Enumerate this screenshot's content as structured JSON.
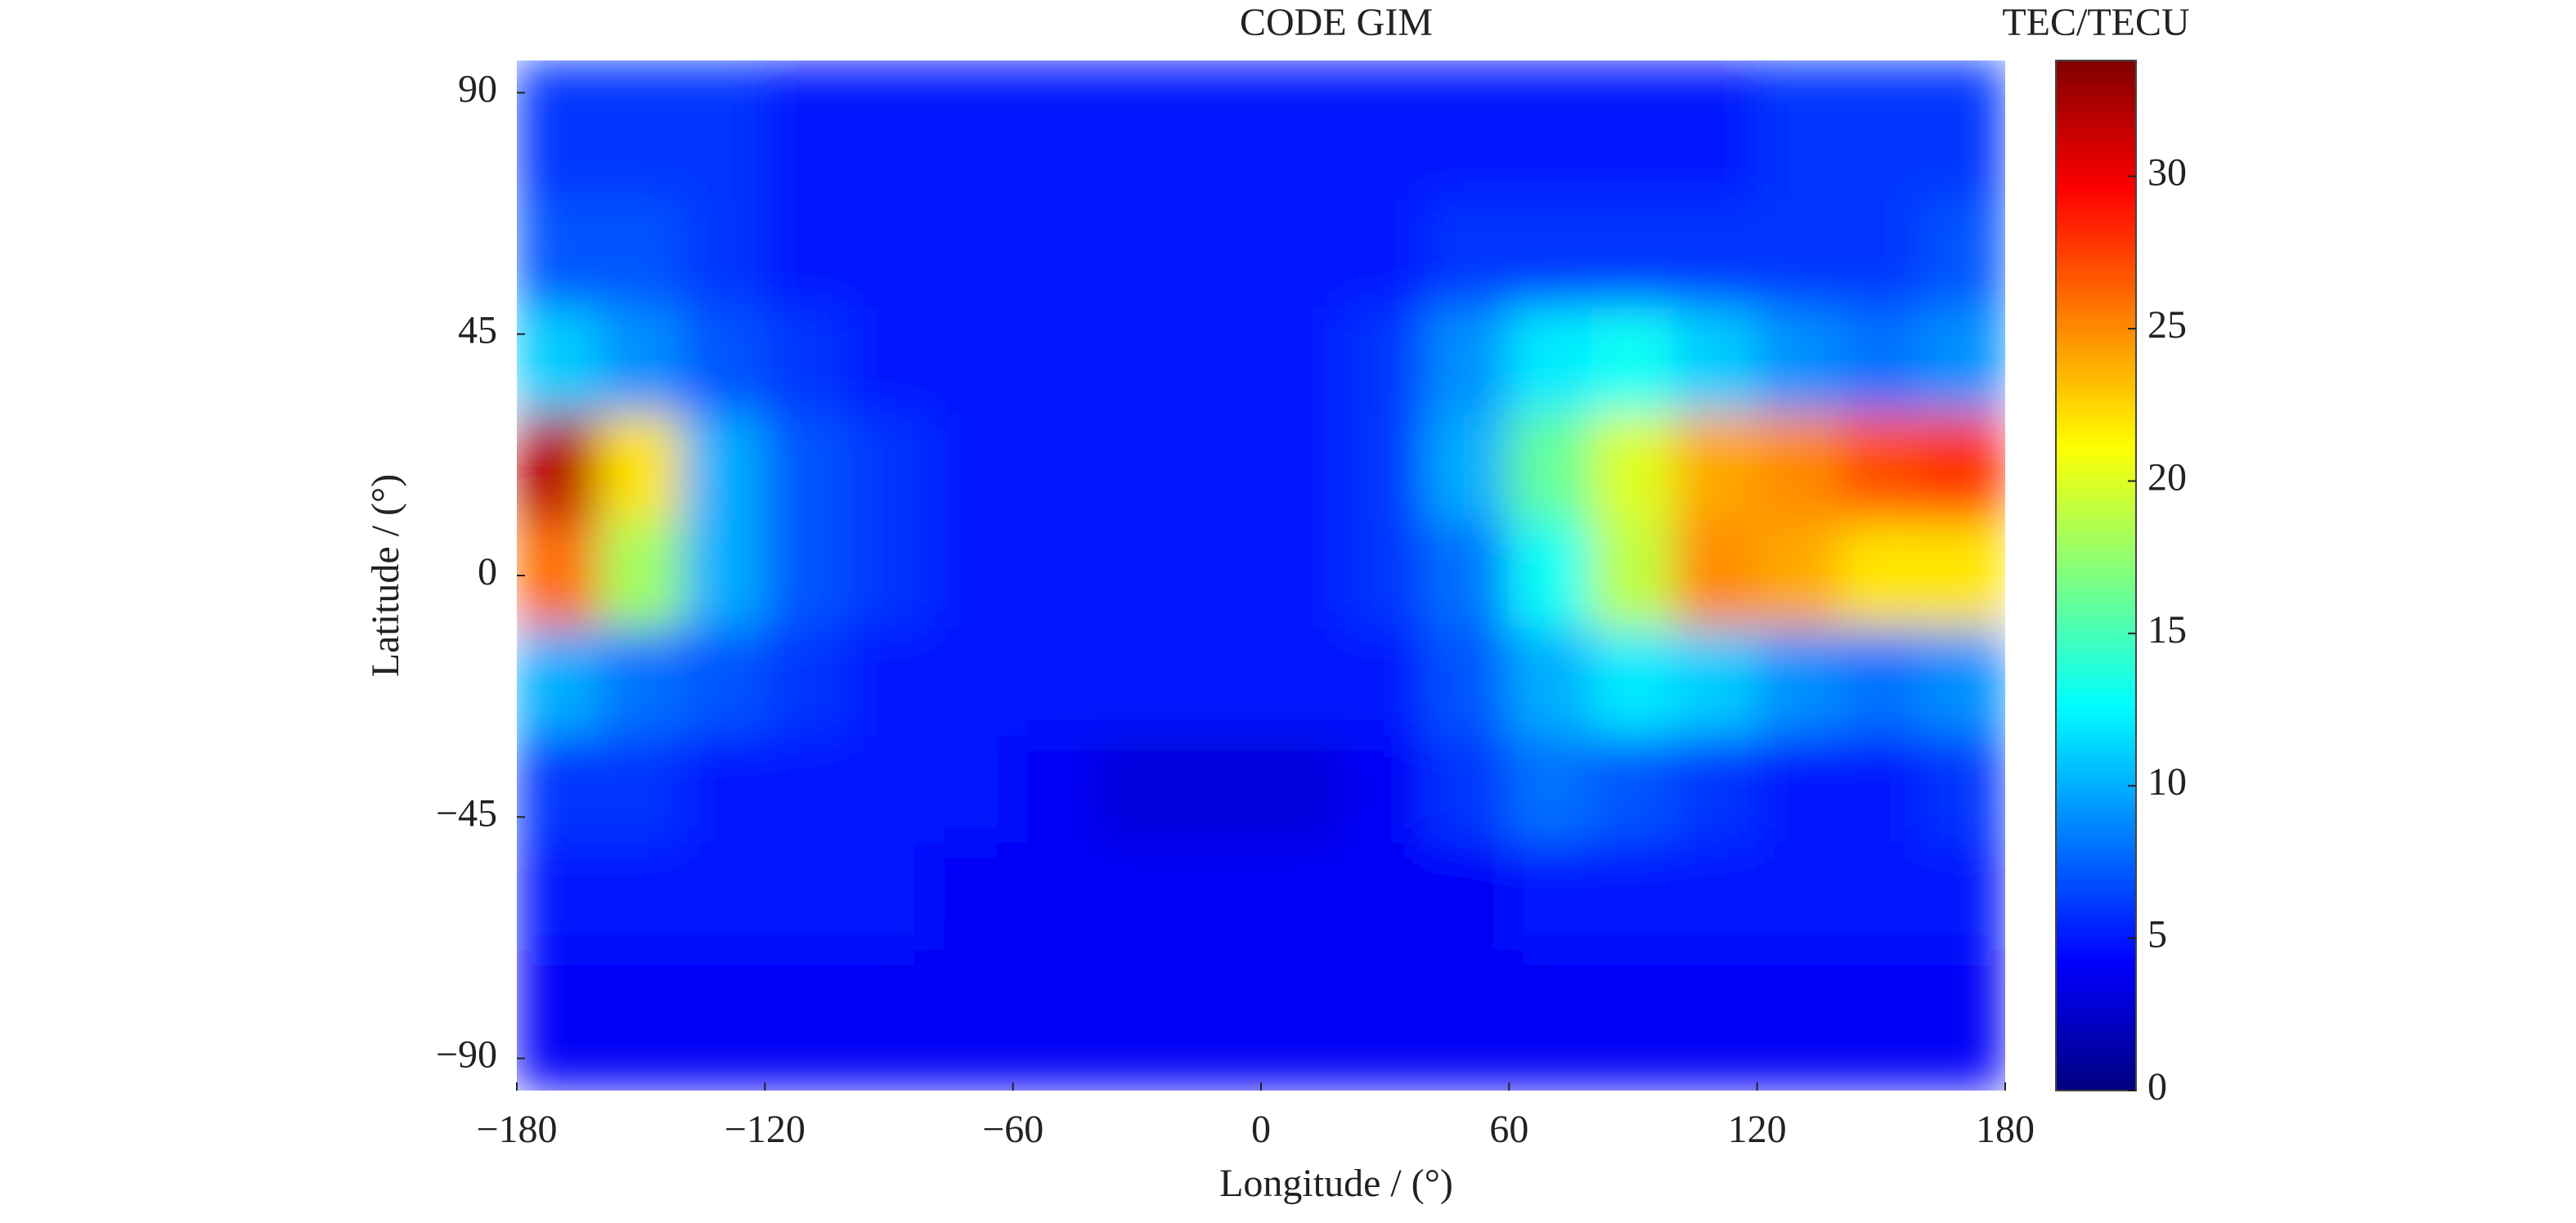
{
  "chart_data": {
    "type": "heatmap",
    "title": "CODE GIM",
    "xlabel": "Longitude / (°)",
    "ylabel": "Latitude / (°)",
    "colorbar_label": "TEC/TECU",
    "colormap": "jet",
    "x": [
      -170,
      -150,
      -130,
      -110,
      -90,
      -70,
      -50,
      -30,
      -10,
      10,
      30,
      50,
      70,
      90,
      110,
      130,
      150,
      170
    ],
    "y": [
      80,
      60,
      40,
      20,
      0,
      -20,
      -40,
      -60,
      -80
    ],
    "z": [
      [
        6,
        6,
        6,
        5,
        5,
        5,
        5,
        5,
        5,
        5,
        5,
        5,
        5,
        5,
        5,
        6,
        6,
        6
      ],
      [
        7,
        7,
        6,
        5,
        5,
        5,
        5,
        5,
        5,
        5,
        5,
        6,
        6,
        6,
        6,
        6,
        6,
        7
      ],
      [
        11,
        9,
        7,
        6,
        5,
        5,
        5,
        5,
        5,
        5,
        6,
        9,
        12,
        13,
        11,
        9,
        8,
        9
      ],
      [
        32,
        22,
        10,
        7,
        6,
        5,
        5,
        5,
        5,
        5,
        6,
        10,
        16,
        20,
        24,
        25,
        27,
        28
      ],
      [
        26,
        18,
        10,
        7,
        6,
        5,
        5,
        5,
        5,
        5,
        6,
        8,
        13,
        19,
        25,
        24,
        22,
        22
      ],
      [
        10,
        8,
        7,
        6,
        5,
        5,
        5,
        5,
        5,
        5,
        5,
        7,
        10,
        12,
        11,
        9,
        8,
        9
      ],
      [
        6,
        6,
        5,
        5,
        5,
        5,
        4,
        3,
        3,
        3,
        4,
        6,
        8,
        7,
        6,
        5,
        5,
        6
      ],
      [
        5,
        5,
        5,
        5,
        5,
        4,
        4,
        4,
        4,
        4,
        4,
        4,
        5,
        5,
        5,
        5,
        5,
        5
      ],
      [
        4,
        4,
        4,
        4,
        4,
        4,
        4,
        4,
        4,
        4,
        4,
        4,
        4,
        4,
        4,
        4,
        4,
        4
      ]
    ],
    "xlim": [
      -180,
      180
    ],
    "ylim": [
      -96,
      96
    ],
    "xticks": [
      {
        "value": -180,
        "label": "−180"
      },
      {
        "value": -120,
        "label": "−120"
      },
      {
        "value": -60,
        "label": "−60"
      },
      0,
      60,
      120,
      180
    ],
    "yticks": [
      90,
      45,
      0,
      {
        "value": -45,
        "label": "−45"
      },
      {
        "value": -90,
        "label": "−90"
      }
    ],
    "clim": [
      0,
      33.8
    ],
    "cticks": [
      0,
      5,
      10,
      15,
      20,
      25,
      30
    ]
  }
}
